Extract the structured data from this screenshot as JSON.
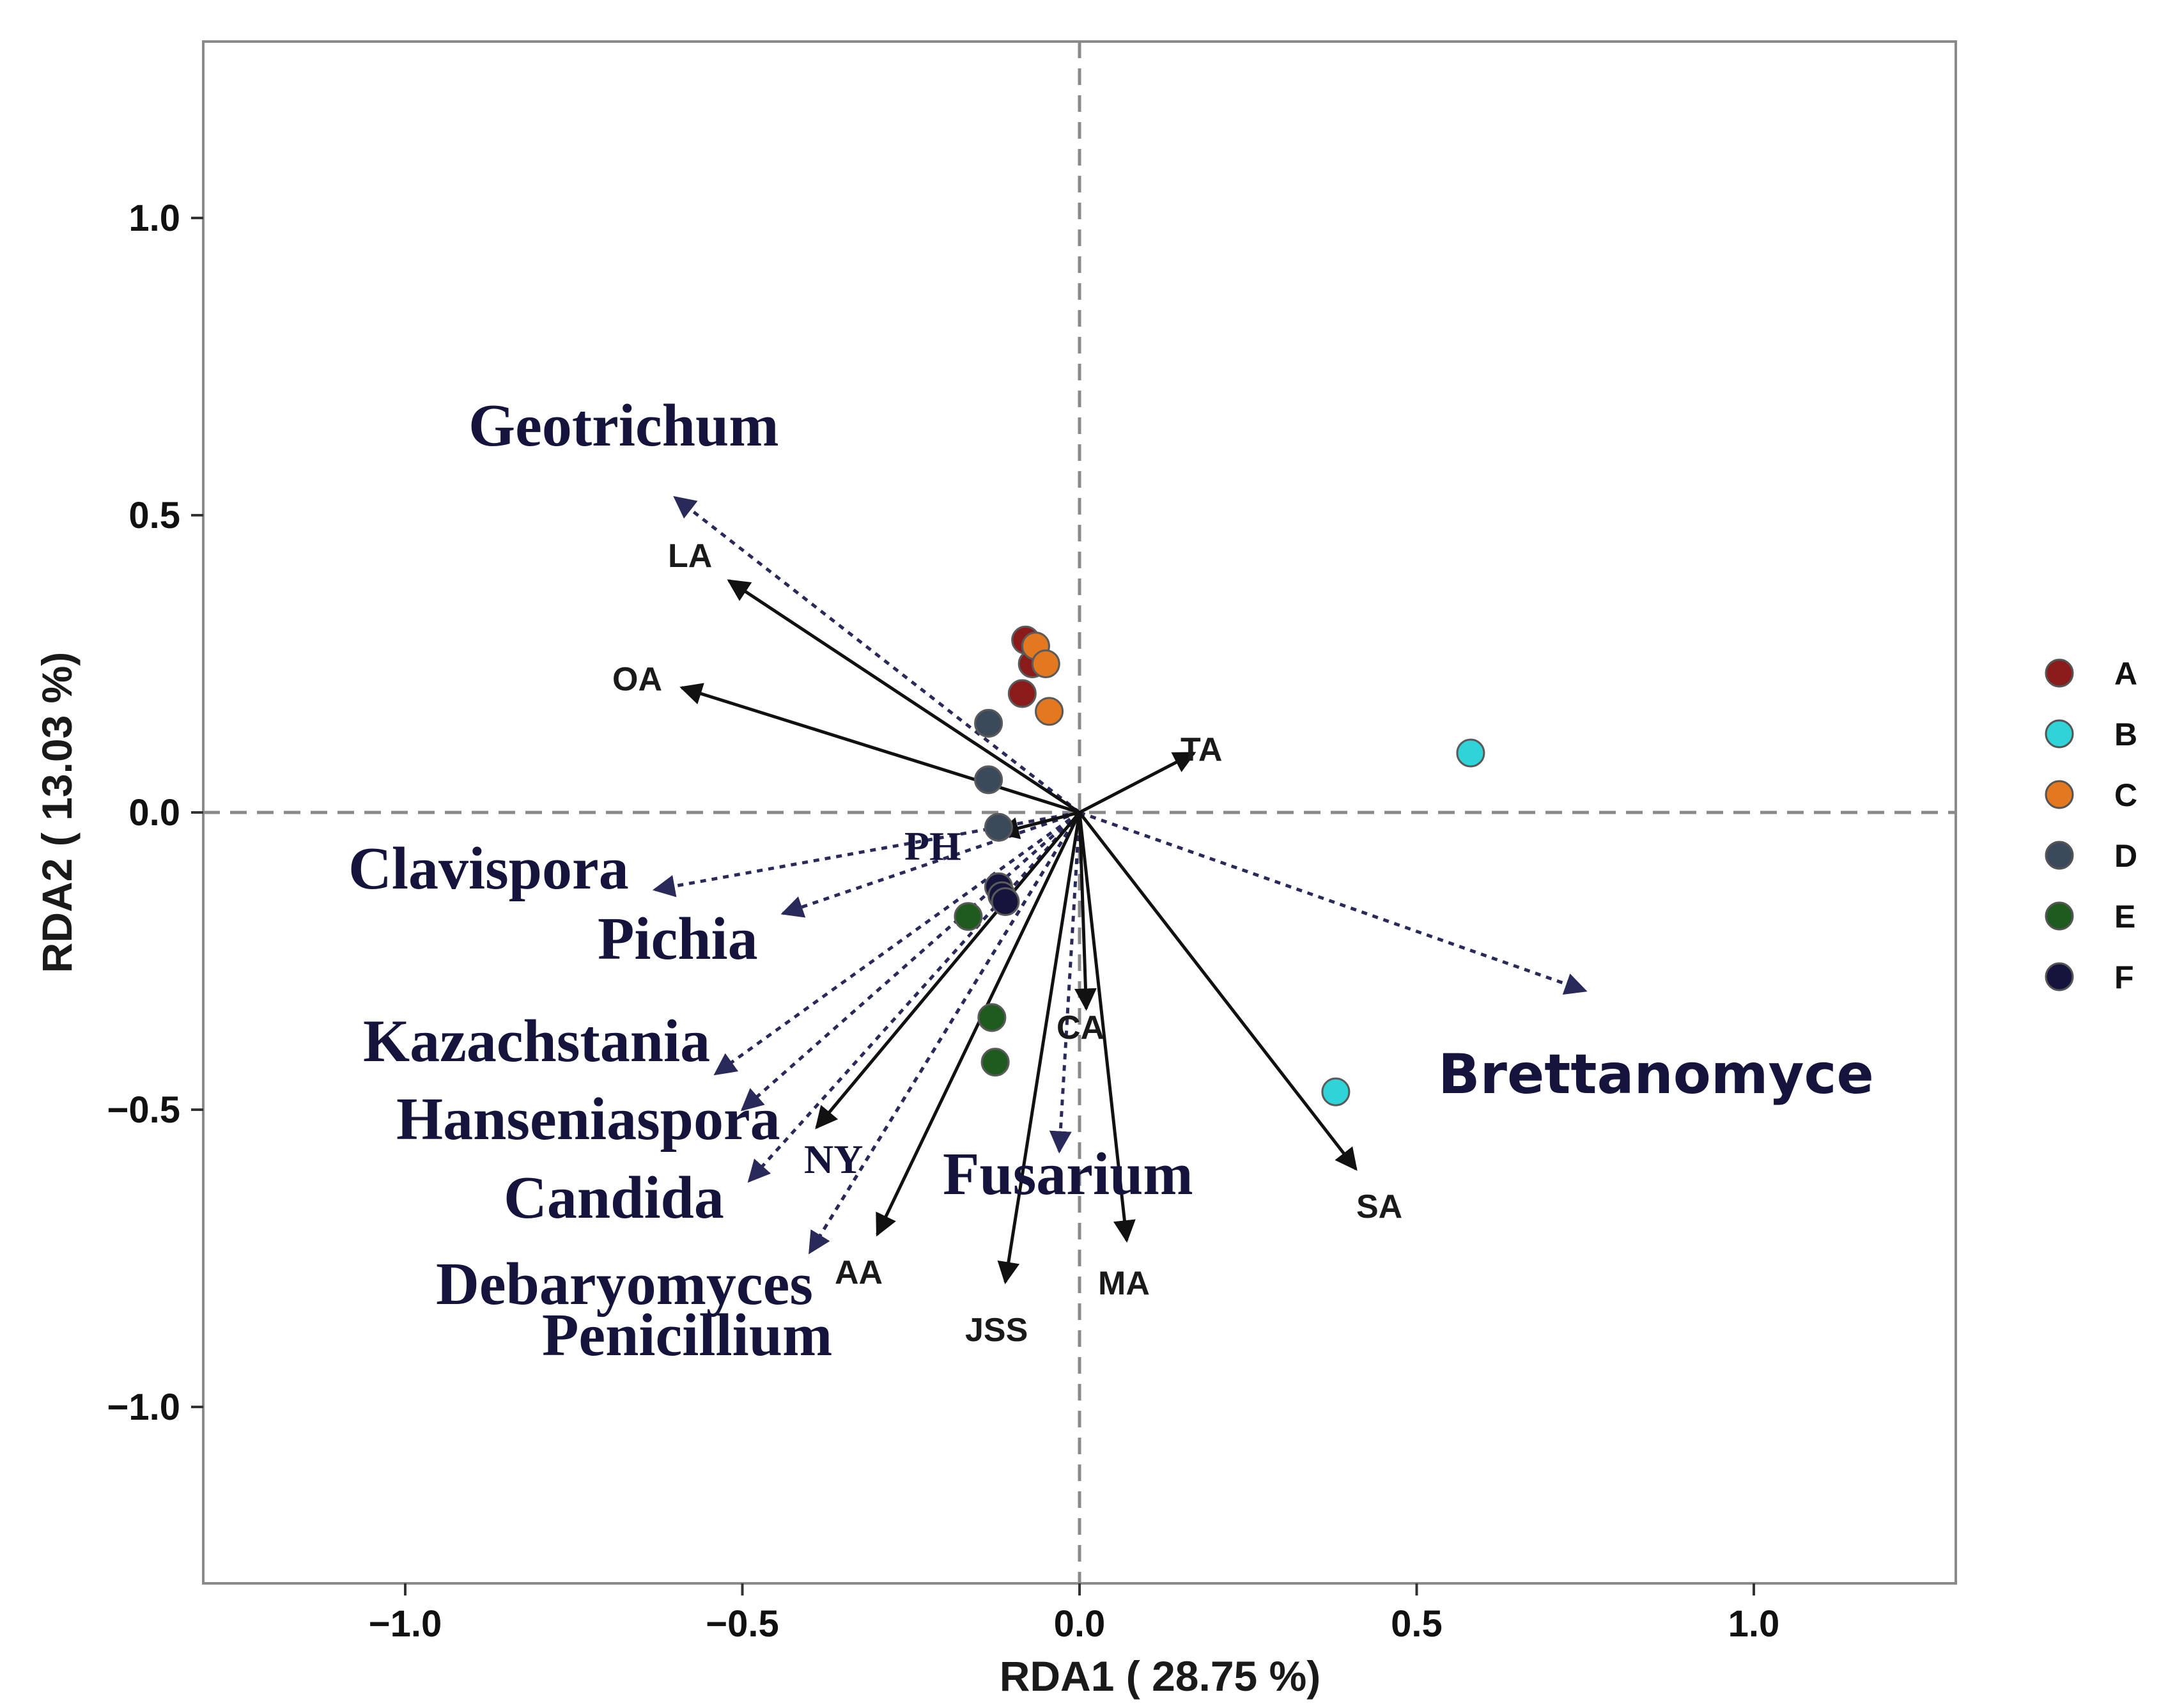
{
  "chart_data": {
    "type": "scatter",
    "subtype": "rda-biplot",
    "xlabel": "RDA1 ( 28.75 %)",
    "ylabel": "RDA2 ( 13.03 %)",
    "xlim": [
      -1.3,
      1.3
    ],
    "ylim": [
      -1.3,
      1.3
    ],
    "x_ticks": [
      {
        "v": -1.0,
        "label": "−1.0"
      },
      {
        "v": -0.5,
        "label": "−0.5"
      },
      {
        "v": 0.0,
        "label": "0.0"
      },
      {
        "v": 0.5,
        "label": "0.5"
      },
      {
        "v": 1.0,
        "label": "1.0"
      }
    ],
    "y_ticks": [
      {
        "v": 1.0,
        "label": "1.0"
      },
      {
        "v": 0.5,
        "label": "0.5"
      },
      {
        "v": 0.0,
        "label": "0.0"
      },
      {
        "v": -0.5,
        "label": "−0.5"
      },
      {
        "v": -1.0,
        "label": "−1.0"
      }
    ],
    "grid": false,
    "legend_position": "right",
    "groups": [
      {
        "name": "A",
        "color": "#8b1a1a",
        "points": [
          [
            -0.08,
            0.29
          ],
          [
            -0.07,
            0.25
          ],
          [
            -0.085,
            0.2
          ]
        ]
      },
      {
        "name": "B",
        "color": "#2ed4d8",
        "points": [
          [
            0.58,
            0.1
          ],
          [
            0.38,
            -0.47
          ]
        ]
      },
      {
        "name": "C",
        "color": "#e3781e",
        "points": [
          [
            -0.065,
            0.28
          ],
          [
            -0.05,
            0.25
          ],
          [
            -0.045,
            0.17
          ]
        ]
      },
      {
        "name": "D",
        "color": "#3b4a5a",
        "points": [
          [
            -0.135,
            0.15
          ],
          [
            -0.135,
            0.055
          ],
          [
            -0.12,
            -0.025
          ]
        ]
      },
      {
        "name": "E",
        "color": "#1f5b1f",
        "points": [
          [
            -0.165,
            -0.175
          ],
          [
            -0.13,
            -0.345
          ],
          [
            -0.125,
            -0.42
          ]
        ]
      },
      {
        "name": "F",
        "color": "#14143c",
        "points": [
          [
            -0.12,
            -0.125
          ],
          [
            -0.115,
            -0.14
          ],
          [
            -0.11,
            -0.15
          ]
        ]
      }
    ],
    "environment_vectors": [
      {
        "name": "LA",
        "x": -0.52,
        "y": 0.39
      },
      {
        "name": "OA",
        "x": -0.59,
        "y": 0.21
      },
      {
        "name": "TA",
        "x": 0.17,
        "y": 0.1
      },
      {
        "name": "PH",
        "x": -0.12,
        "y": -0.035
      },
      {
        "name": "CA",
        "x": 0.01,
        "y": -0.33
      },
      {
        "name": "NY",
        "x": -0.39,
        "y": -0.53
      },
      {
        "name": "AA",
        "x": -0.3,
        "y": -0.71
      },
      {
        "name": "JSS",
        "x": -0.11,
        "y": -0.79
      },
      {
        "name": "MA",
        "x": 0.07,
        "y": -0.72
      },
      {
        "name": "SA",
        "x": 0.41,
        "y": -0.6
      }
    ],
    "species_vectors": [
      {
        "name": "Geotrichum",
        "x": -0.6,
        "y": 0.53
      },
      {
        "name": "Clavispora",
        "x": -0.63,
        "y": -0.13
      },
      {
        "name": "Pichia",
        "x": -0.44,
        "y": -0.17
      },
      {
        "name": "Kazachstania",
        "x": -0.54,
        "y": -0.44
      },
      {
        "name": "Hanseniaspora",
        "x": -0.5,
        "y": -0.5
      },
      {
        "name": "Candida",
        "x": -0.49,
        "y": -0.62
      },
      {
        "name": "Debaryomyces",
        "x": -0.4,
        "y": -0.74
      },
      {
        "name": "Penicillium",
        "x": -0.4,
        "y": -0.74
      },
      {
        "name": "Fusarium",
        "x": -0.03,
        "y": -0.57
      },
      {
        "name": "Brettanomyce",
        "x": 0.75,
        "y": -0.3
      }
    ]
  }
}
